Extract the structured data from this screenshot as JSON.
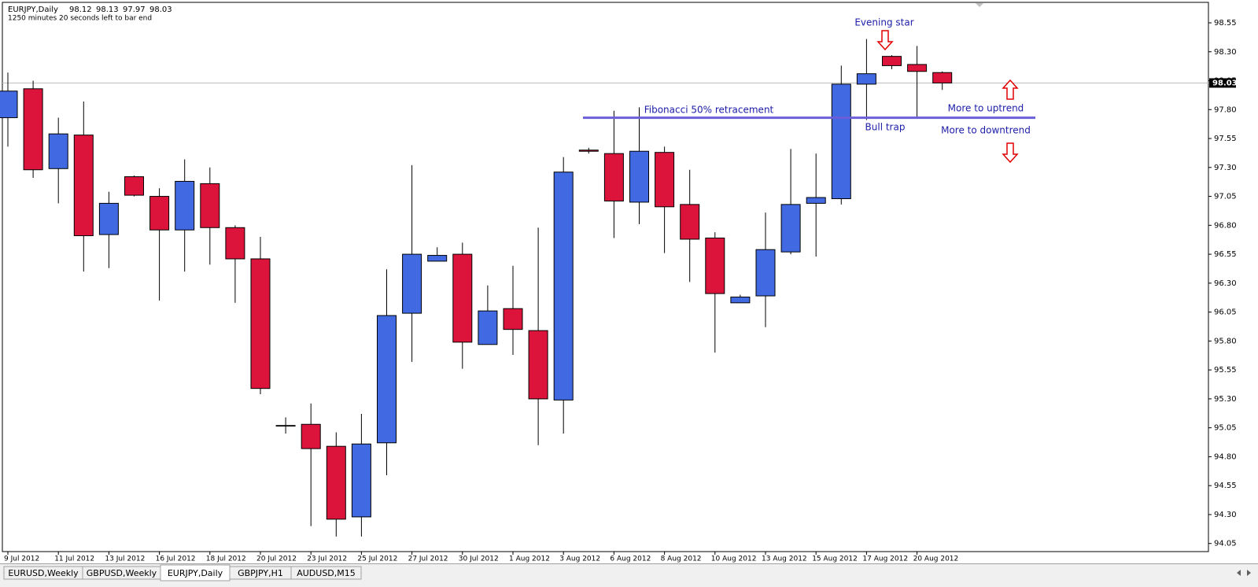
{
  "chart_data": {
    "type": "candlestick",
    "title": "EURJPY,Daily",
    "subtitle": "1250 minutes 20 seconds left to bar end",
    "categories": [
      "9 Jul 2012",
      null,
      "11 Jul 2012",
      null,
      "13 Jul 2012",
      null,
      "16 Jul 2012",
      null,
      "18 Jul 2012",
      null,
      "20 Jul 2012",
      null,
      "23 Jul 2012",
      null,
      "25 Jul 2012",
      null,
      "27 Jul 2012",
      null,
      "30 Jul 2012",
      null,
      "1 Aug 2012",
      null,
      "3 Aug 2012",
      null,
      "6 Aug 2012",
      null,
      "8 Aug 2012",
      null,
      "10 Aug 2012",
      null,
      "13 Aug 2012",
      null,
      "15 Aug 2012",
      null,
      "17 Aug 2012",
      null,
      "20 Aug 2012",
      null
    ],
    "open": [
      97.73,
      97.98,
      97.29,
      97.58,
      96.72,
      97.22,
      97.05,
      96.76,
      97.16,
      96.78,
      96.51,
      95.07,
      95.08,
      94.89,
      94.28,
      94.92,
      96.04,
      96.49,
      96.55,
      95.77,
      96.08,
      95.89,
      95.29,
      97.45,
      97.42,
      97.0,
      97.43,
      96.98,
      96.69,
      96.13,
      96.19,
      96.57,
      96.99,
      97.03,
      98.02,
      98.26,
      98.19,
      98.12
    ],
    "high": [
      98.12,
      98.05,
      97.73,
      97.87,
      97.09,
      97.23,
      97.12,
      97.37,
      97.3,
      96.8,
      96.7,
      95.14,
      95.26,
      95.01,
      95.17,
      96.42,
      97.32,
      96.61,
      96.65,
      96.28,
      96.45,
      96.78,
      97.39,
      97.47,
      97.79,
      97.82,
      97.48,
      97.28,
      96.74,
      96.2,
      96.91,
      97.46,
      97.42,
      98.18,
      98.41,
      98.27,
      98.35,
      98.13
    ],
    "low": [
      97.48,
      97.21,
      96.99,
      96.4,
      96.43,
      97.05,
      96.15,
      96.4,
      96.46,
      96.13,
      95.34,
      95.0,
      94.2,
      94.11,
      94.11,
      94.64,
      95.62,
      96.49,
      95.56,
      95.77,
      95.68,
      94.9,
      95.0,
      97.42,
      96.69,
      96.81,
      96.56,
      96.31,
      95.7,
      96.13,
      95.92,
      96.55,
      96.53,
      96.98,
      97.71,
      98.15,
      97.72,
      97.97
    ],
    "close": [
      97.96,
      97.28,
      97.59,
      96.71,
      96.99,
      97.06,
      96.76,
      97.18,
      96.78,
      96.51,
      95.39,
      95.07,
      94.87,
      94.26,
      94.91,
      96.02,
      96.55,
      96.54,
      95.79,
      96.06,
      95.9,
      95.3,
      97.26,
      97.44,
      97.01,
      97.44,
      96.96,
      96.68,
      96.21,
      96.18,
      96.59,
      96.98,
      97.04,
      98.02,
      98.11,
      98.18,
      98.13,
      98.03
    ],
    "up_color": "#4169e1",
    "down_color": "#dc143c",
    "ylim": [
      93.98,
      98.72
    ],
    "yticks": [
      {
        "value": 98.55,
        "label": "98.55"
      },
      {
        "value": 98.3,
        "label": "98.30"
      },
      {
        "value": 98.05,
        "label": "98.05"
      },
      {
        "value": 97.8,
        "label": "97.80"
      },
      {
        "value": 97.55,
        "label": "97.55"
      },
      {
        "value": 97.3,
        "label": "97.30"
      },
      {
        "value": 97.05,
        "label": "97.05"
      },
      {
        "value": 96.8,
        "label": "96.80"
      },
      {
        "value": 96.55,
        "label": "96.55"
      },
      {
        "value": 96.3,
        "label": "96.30"
      },
      {
        "value": 96.05,
        "label": "96.05"
      },
      {
        "value": 95.8,
        "label": "95.80"
      },
      {
        "value": 95.55,
        "label": "95.55"
      },
      {
        "value": 95.3,
        "label": "95.30"
      },
      {
        "value": 95.05,
        "label": "95.05"
      },
      {
        "value": 94.8,
        "label": "94.80"
      },
      {
        "value": 94.55,
        "label": "94.55"
      },
      {
        "value": 94.3,
        "label": "94.30"
      },
      {
        "value": 94.05,
        "label": "94.05"
      }
    ],
    "grid": false,
    "fibonacci_level": 97.73,
    "annotations": {
      "evening_star": "Evening star",
      "fibonacci": "Fibonacci 50% retracement",
      "bull_trap": "Bull trap",
      "uptrend": "More to uptrend",
      "downtrend": "More to downtrend"
    }
  },
  "tabs": [
    "EURUSD,Weekly",
    "GBPUSD,Weekly",
    "EURJPY,Daily",
    "GBPJPY,H1",
    "AUDUSD,M15"
  ],
  "active_tab": 2
}
